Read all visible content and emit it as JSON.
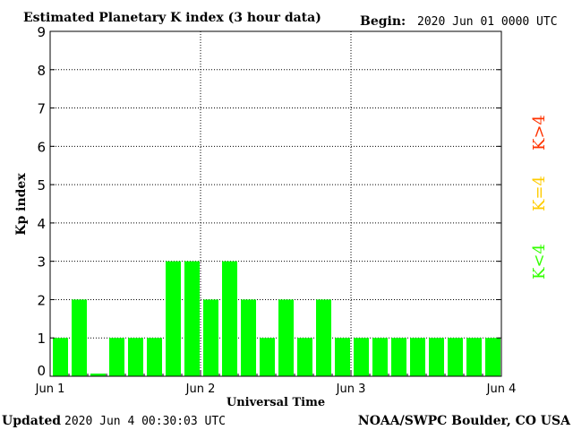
{
  "header": {
    "title": "Estimated Planetary K index (3 hour data)",
    "begin_label": "Begin:",
    "begin_value": "2020 Jun 01 0000 UTC"
  },
  "footer": {
    "updated_label": "Updated",
    "updated_value": "2020 Jun  4 00:30:03 UTC",
    "source": "NOAA/SWPC Boulder, CO USA"
  },
  "legend": {
    "above": "K>4",
    "equal": "K=4",
    "below": "K<4"
  },
  "colors": {
    "bar_below": "#00ff00",
    "bar_equal": "#ffcc00",
    "bar_above": "#ff0000",
    "legend_above": "#ff3300",
    "legend_equal": "#ffcc00",
    "legend_below": "#33ff00",
    "axis": "#000000",
    "grid": "#000000"
  },
  "chart_data": {
    "type": "bar",
    "ylabel": "Kp index",
    "xlabel": "Universal Time",
    "ylim": [
      0,
      9
    ],
    "yticks": [
      "0",
      "1",
      "2",
      "3",
      "4",
      "5",
      "6",
      "7",
      "8",
      "9"
    ],
    "x_tick_labels": [
      "Jun 1",
      "Jun 2",
      "Jun 3",
      "Jun 4"
    ],
    "interval_hours": 3,
    "grid": true,
    "values": [
      1,
      2,
      0.07,
      1,
      1,
      1,
      3,
      3,
      2,
      3,
      2,
      1,
      2,
      1,
      2,
      1,
      1,
      1,
      1,
      1,
      1,
      1,
      1,
      1
    ]
  }
}
